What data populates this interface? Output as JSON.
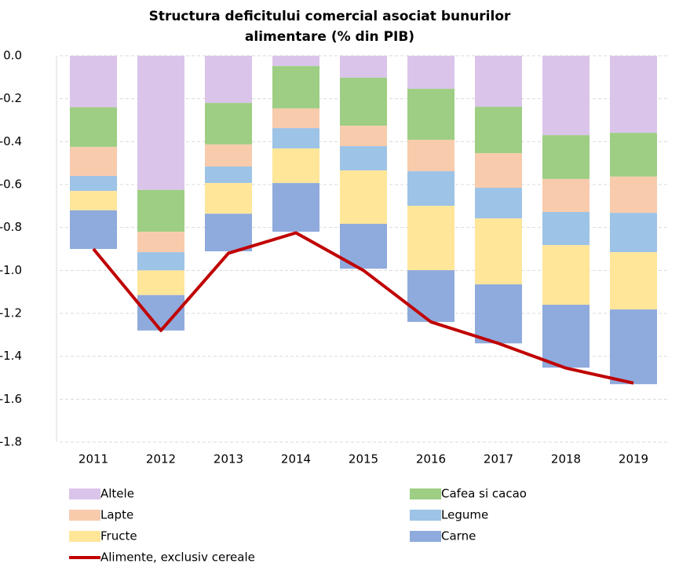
{
  "chart_data": {
    "type": "bar",
    "title": [
      "Structura deficitului comercial asociat bunurilor",
      "alimentare (% din PIB)"
    ],
    "categories": [
      "2011",
      "2012",
      "2013",
      "2014",
      "2015",
      "2016",
      "2017",
      "2018",
      "2019"
    ],
    "series": [
      {
        "name": "Altele",
        "color": "#dbc4ea",
        "values": [
          -0.24,
          -0.625,
          -0.22,
          -0.048,
          -0.102,
          -0.154,
          -0.238,
          -0.37,
          -0.359
        ]
      },
      {
        "name": "Cafea si cacao",
        "color": "#9dce83",
        "values": [
          -0.185,
          -0.195,
          -0.193,
          -0.197,
          -0.224,
          -0.238,
          -0.216,
          -0.204,
          -0.204
        ]
      },
      {
        "name": "Lapte",
        "color": "#f8cbad",
        "values": [
          -0.135,
          -0.095,
          -0.103,
          -0.092,
          -0.095,
          -0.146,
          -0.161,
          -0.154,
          -0.169
        ]
      },
      {
        "name": "Legume",
        "color": "#9dc3e6",
        "values": [
          -0.07,
          -0.085,
          -0.077,
          -0.095,
          -0.113,
          -0.161,
          -0.143,
          -0.154,
          -0.183
        ]
      },
      {
        "name": "Fructe",
        "color": "#ffe699",
        "values": [
          -0.09,
          -0.115,
          -0.143,
          -0.161,
          -0.249,
          -0.3,
          -0.307,
          -0.278,
          -0.267
        ]
      },
      {
        "name": "Carne",
        "color": "#8faadc",
        "values": [
          -0.18,
          -0.165,
          -0.175,
          -0.227,
          -0.209,
          -0.241,
          -0.275,
          -0.293,
          -0.348
        ]
      }
    ],
    "line": {
      "name": "Alimente, exclusiv cereale",
      "color": "#c00000",
      "values": [
        -0.9,
        -1.28,
        -0.92,
        -0.825,
        -1.0,
        -1.24,
        -1.34,
        -1.455,
        -1.525
      ]
    },
    "ylim": [
      -1.8,
      0
    ],
    "yticks": [
      {
        "value": 0,
        "label": "0.0"
      },
      -0.2,
      -0.4,
      -0.6,
      -0.8,
      {
        "value": -1,
        "label": "-1.0"
      },
      -1.2,
      -1.4,
      -1.6,
      -1.8
    ],
    "grid": true
  }
}
